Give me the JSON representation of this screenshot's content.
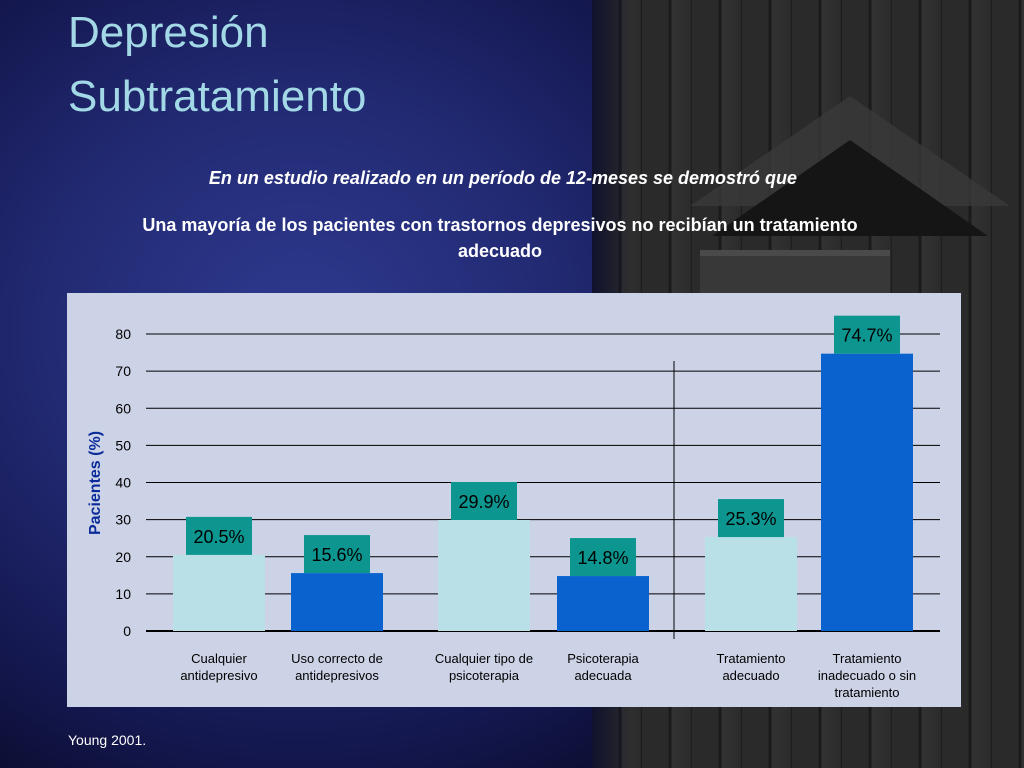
{
  "slide": {
    "title_line1": "Depresión",
    "title_line2": "Subtratamiento",
    "subtitle_italic": "En un estudio realizado en un período de 12-meses se demostró que",
    "subtitle_main": "Una mayoría de los pacientes con trastornos depresivos no recibían un tratamiento adecuado",
    "source": "Young 2001."
  },
  "colors": {
    "title": "#a3d9e6",
    "panel": "#cdd3e6",
    "light_bar": "#b9e0e6",
    "dark_bar": "#0a62cf",
    "label_box": "#0d9690"
  },
  "chart_data": {
    "type": "bar",
    "ylabel": "Pacientes (%)",
    "ylim": [
      0,
      80
    ],
    "yticks": [
      0,
      10,
      20,
      30,
      40,
      50,
      60,
      70,
      80
    ],
    "grid": true,
    "categories": [
      [
        "Cualquier",
        "antidepresivo"
      ],
      [
        "Uso correcto de",
        "antidepresivos"
      ],
      [
        "Cualquier tipo de",
        "psicoterapia"
      ],
      [
        "Psicoterapia",
        "adecuada"
      ],
      [
        "Tratamiento",
        "adecuado"
      ],
      [
        "Tratamiento",
        "inadecuado o sin",
        "tratamiento"
      ]
    ],
    "values": [
      20.5,
      15.6,
      29.9,
      14.8,
      25.3,
      74.7
    ],
    "data_labels": [
      "20.5%",
      "15.6%",
      "29.9%",
      "14.8%",
      "25.3%",
      "74.7%"
    ],
    "bar_style": [
      "light",
      "dark",
      "light",
      "dark",
      "light",
      "dark"
    ]
  }
}
